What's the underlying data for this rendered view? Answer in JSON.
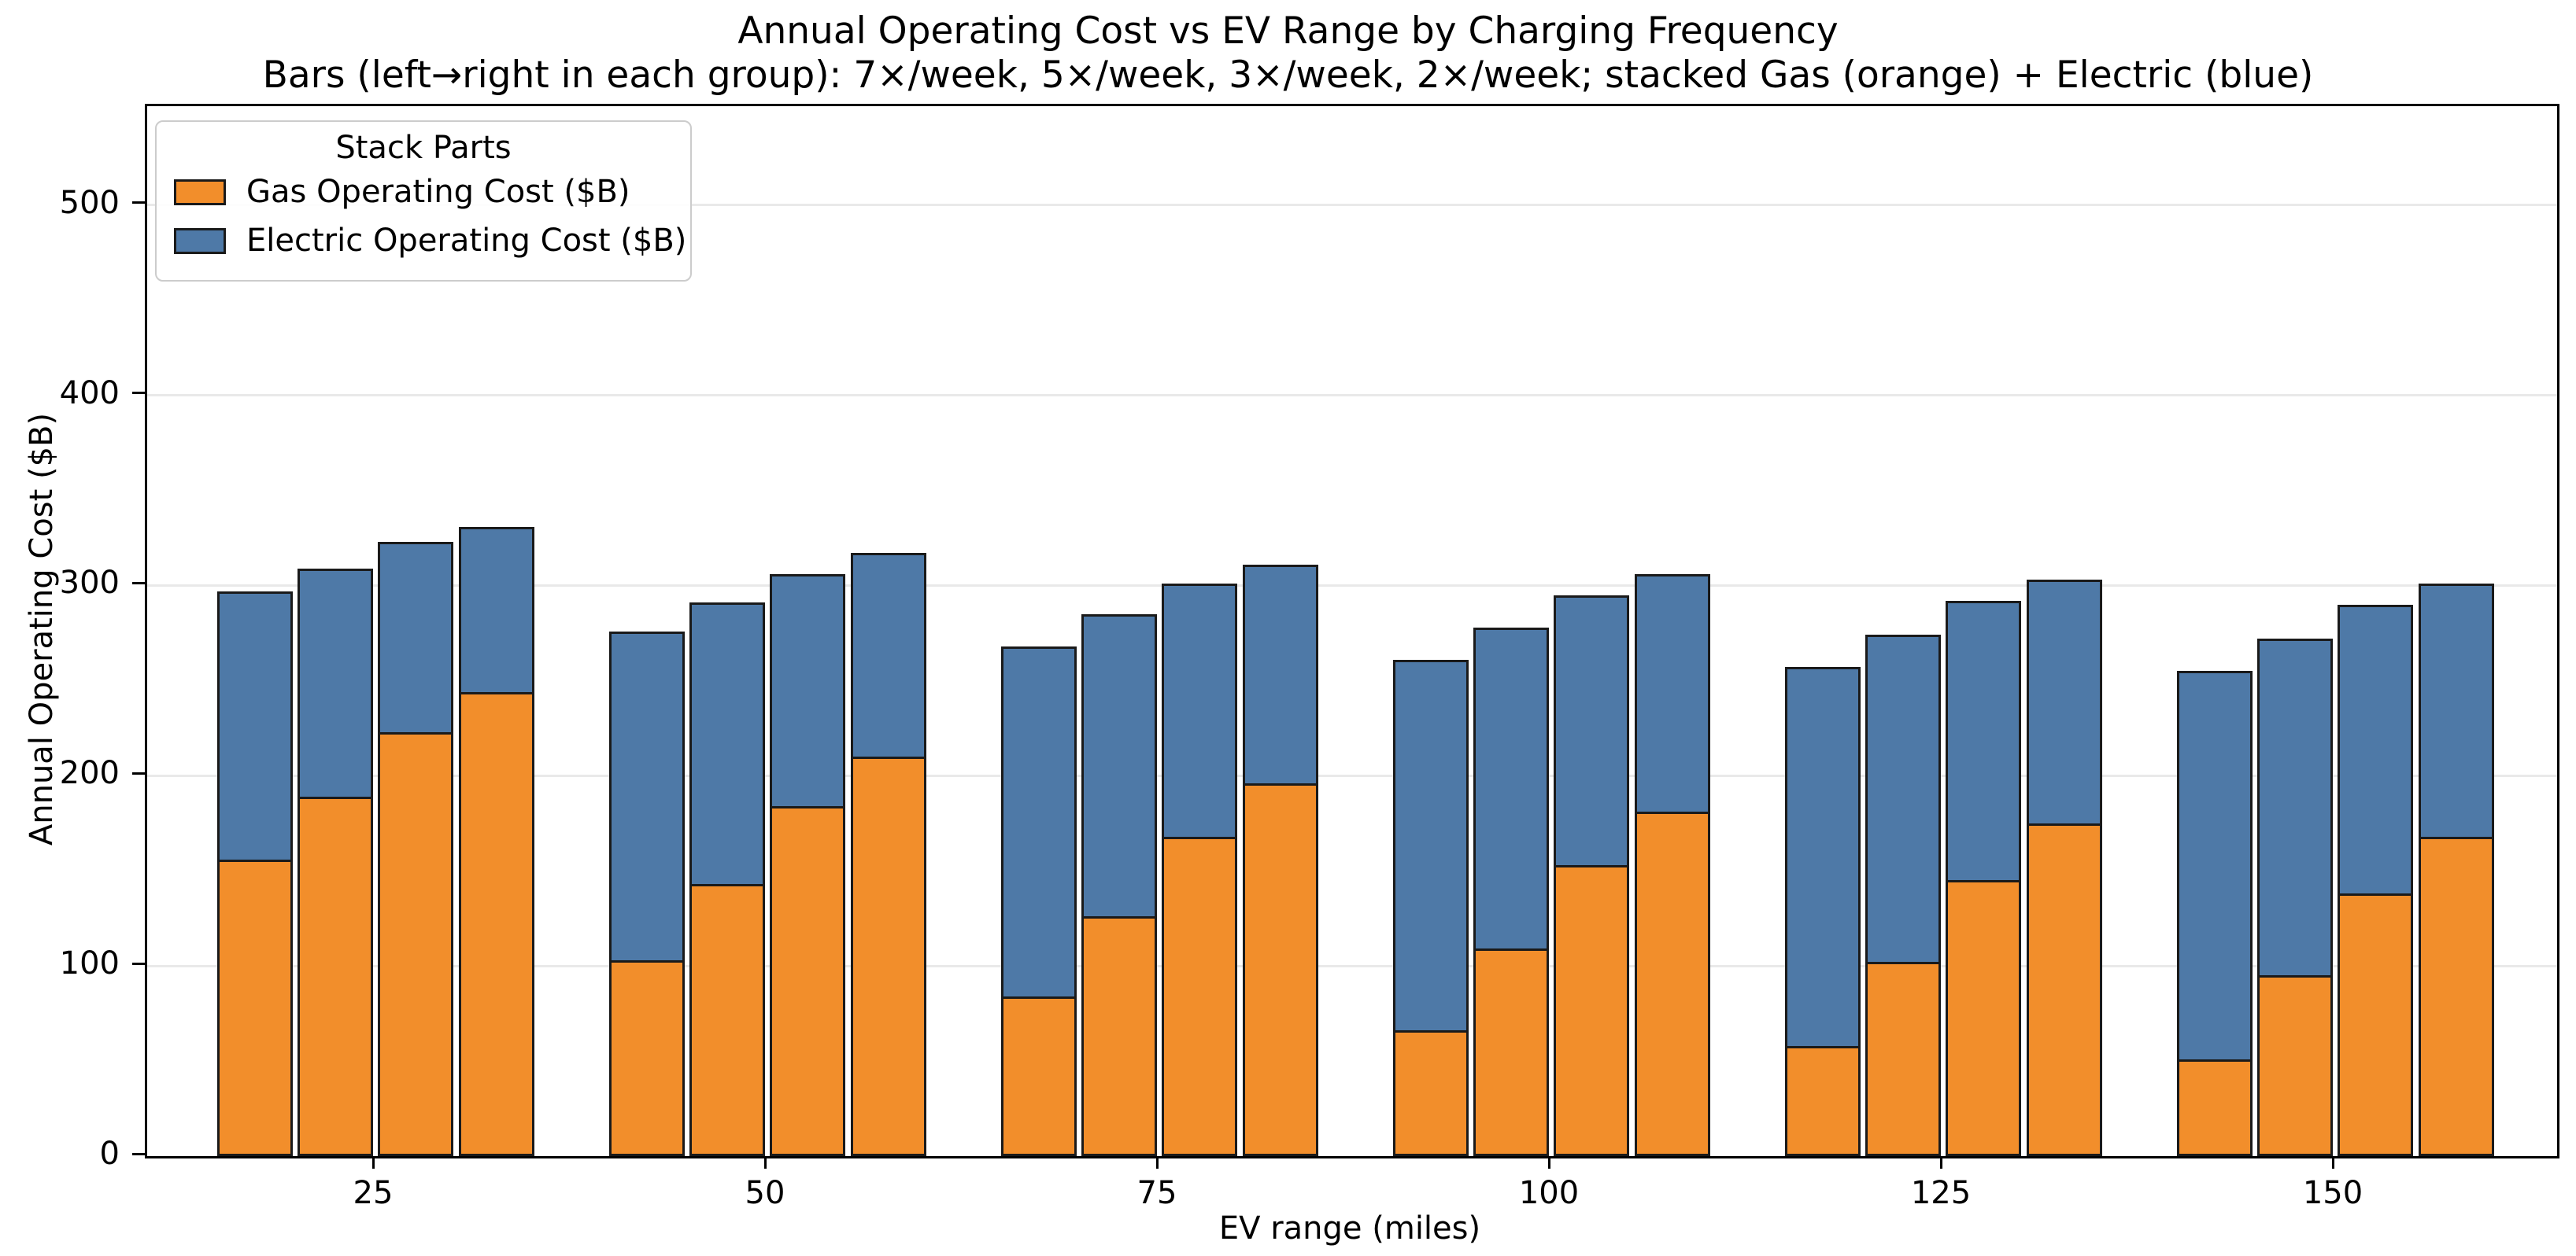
{
  "chart_data": {
    "type": "bar",
    "stacked": true,
    "title": "Annual Operating Cost vs EV Range by Charging Frequency",
    "subtitle": "Bars (left→right in each group): 7×/week, 5×/week, 3×/week, 2×/week; stacked Gas (orange) + Electric (blue)",
    "xlabel": "EV range (miles)",
    "ylabel": "Annual Operating Cost ($B)",
    "categories": [
      "25",
      "50",
      "75",
      "100",
      "125",
      "150"
    ],
    "bars_per_group": [
      "7×/week",
      "5×/week",
      "3×/week",
      "2×/week"
    ],
    "series": [
      {
        "name": "Gas Operating Cost ($B)",
        "color": "#f28e2b",
        "values": [
          [
            156,
            189,
            223,
            244
          ],
          [
            103,
            143,
            184,
            210
          ],
          [
            84,
            126,
            168,
            196
          ],
          [
            66,
            109,
            153,
            181
          ],
          [
            58,
            102,
            145,
            175
          ],
          [
            51,
            95,
            138,
            168
          ]
        ]
      },
      {
        "name": "Electric Operating Cost ($B)",
        "color": "#4e79a7",
        "values": [
          [
            141,
            120,
            100,
            87
          ],
          [
            173,
            148,
            122,
            107
          ],
          [
            184,
            159,
            133,
            115
          ],
          [
            195,
            169,
            142,
            125
          ],
          [
            199,
            172,
            147,
            128
          ],
          [
            204,
            177,
            152,
            133
          ]
        ]
      }
    ],
    "stack_totals": [
      [
        297,
        309,
        323,
        331
      ],
      [
        276,
        291,
        306,
        317
      ],
      [
        268,
        285,
        301,
        311
      ],
      [
        261,
        278,
        295,
        306
      ],
      [
        257,
        274,
        292,
        303
      ],
      [
        255,
        272,
        290,
        301
      ]
    ],
    "yticks": [
      0,
      100,
      200,
      300,
      400,
      500
    ],
    "ylim": [
      0,
      552
    ],
    "grid": "horizontal",
    "legend_position": "upper left",
    "legend": {
      "title": "Stack Parts",
      "items": [
        {
          "label": "Gas Operating Cost ($B)",
          "color": "#f28e2b"
        },
        {
          "label": "Electric Operating Cost ($B)",
          "color": "#4e79a7"
        }
      ]
    },
    "style": {
      "bar_edge": "#1a1a1a",
      "grid_color": "#e9e9e9",
      "spine_color": "#000000",
      "background": "#ffffff"
    }
  }
}
